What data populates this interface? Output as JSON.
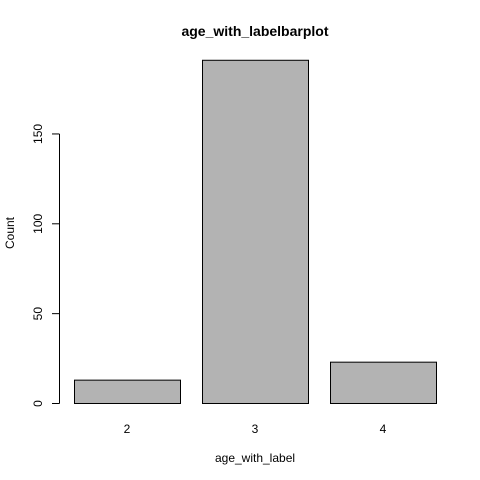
{
  "chart_data": {
    "type": "bar",
    "title": "age_with_labelbarplot",
    "xlabel": "age_with_label",
    "ylabel": "Count",
    "categories": [
      "2",
      "3",
      "4"
    ],
    "values": [
      13,
      191,
      23
    ],
    "ylim": [
      0,
      200
    ],
    "yticks": [
      0,
      50,
      100,
      150
    ],
    "grid": false,
    "legend": "none",
    "colors": {
      "bar_fill": "#b3b3b3",
      "bar_stroke": "#000000",
      "axis": "#000000"
    }
  }
}
